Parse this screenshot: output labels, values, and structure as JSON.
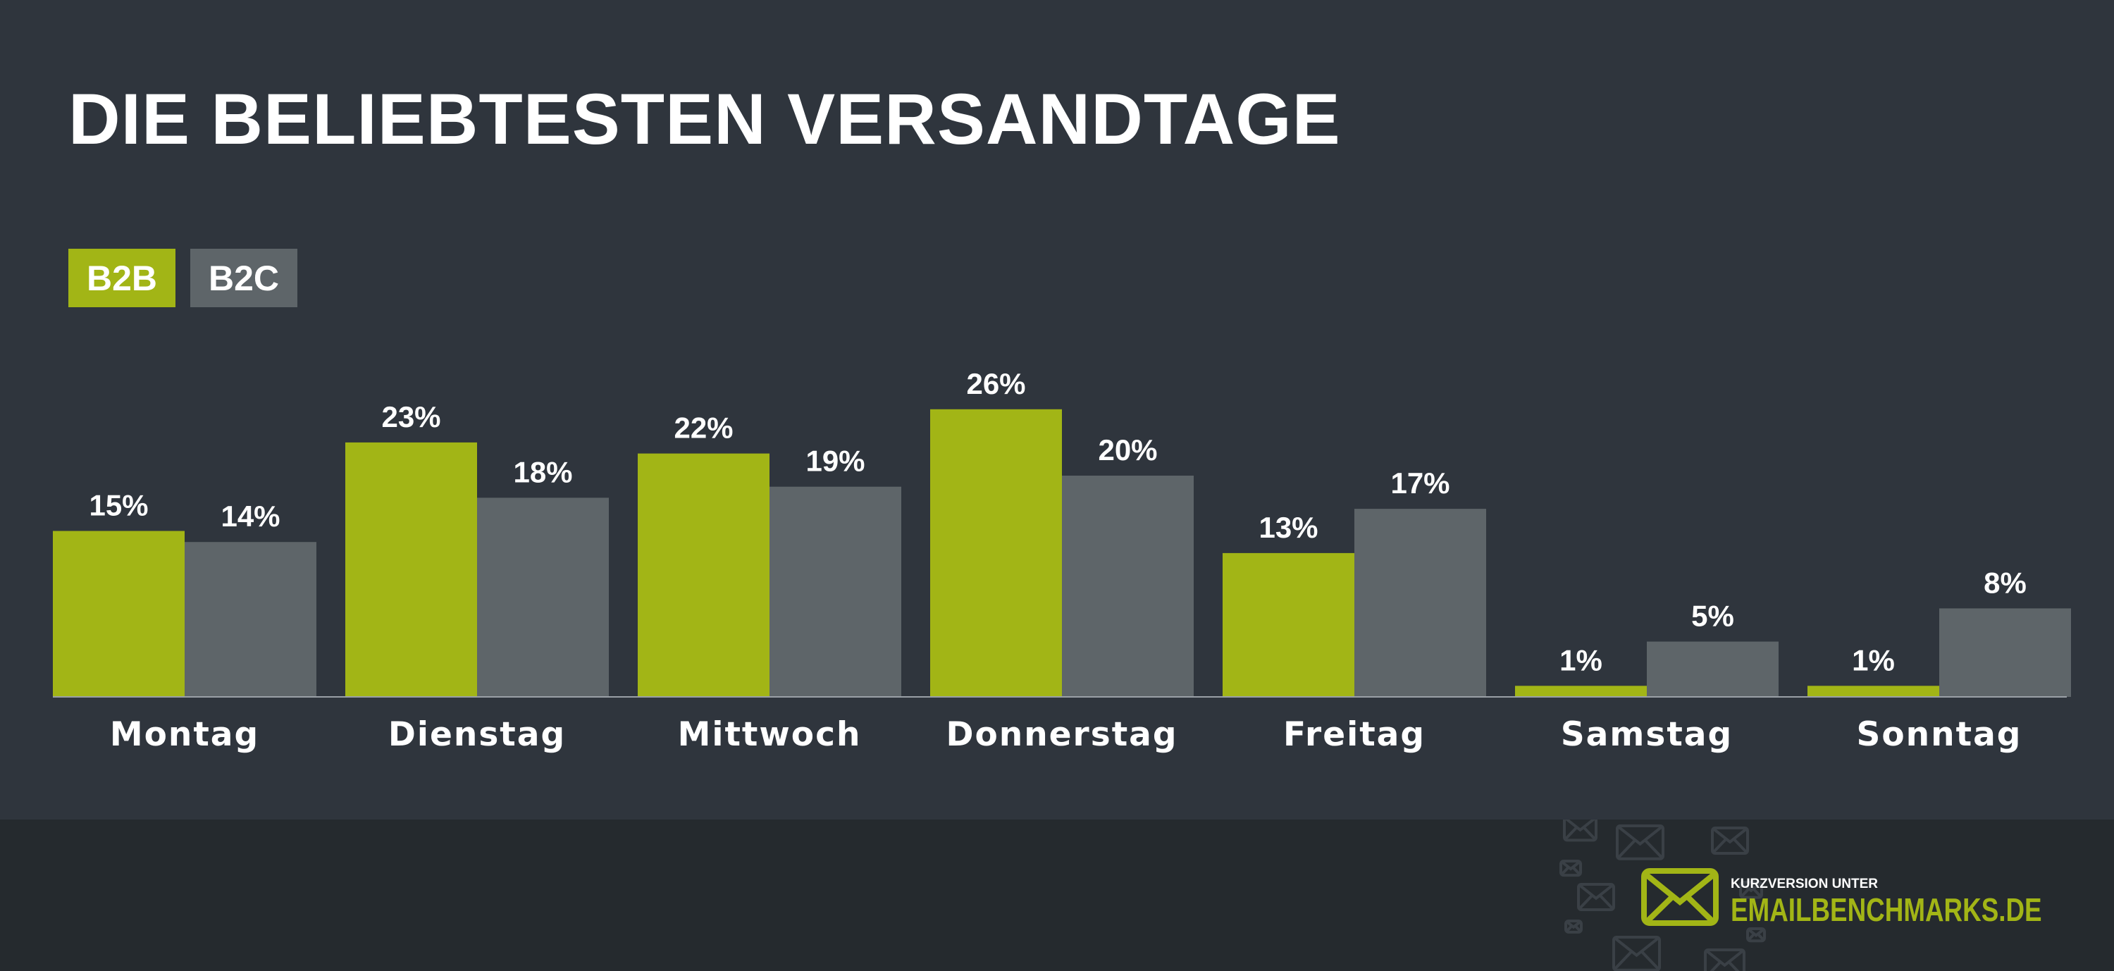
{
  "chart_data": {
    "type": "bar",
    "title": "DIE BELIEBTESTEN VERSANDTAGE",
    "categories": [
      "Montag",
      "Dienstag",
      "Mittwoch",
      "Donnerstag",
      "Freitag",
      "Samstag",
      "Sonntag"
    ],
    "series": [
      {
        "name": "B2B",
        "color": "#a2b516",
        "values": [
          15,
          23,
          22,
          26,
          13,
          1,
          1
        ],
        "labels": [
          "15%",
          "23%",
          "22%",
          "26%",
          "13%",
          "1%",
          "1%"
        ]
      },
      {
        "name": "B2C",
        "color": "#5e6569",
        "values": [
          14,
          18,
          19,
          20,
          17,
          5,
          8
        ],
        "labels": [
          "14%",
          "18%",
          "19%",
          "20%",
          "17%",
          "5%",
          "8%"
        ]
      }
    ],
    "ylim": [
      0,
      30
    ],
    "grid": false,
    "legend_position": "top-left",
    "unit": "%"
  },
  "colors": {
    "background": "#2f353d",
    "footer": "#252a2e",
    "accent": "#a2b516",
    "secondary": "#5e6569"
  },
  "footer": {
    "logo_icon": "envelope-icon",
    "small_text": "KURZVERSION UNTER",
    "brand": "EMAILBENCHMARKS.DE"
  }
}
